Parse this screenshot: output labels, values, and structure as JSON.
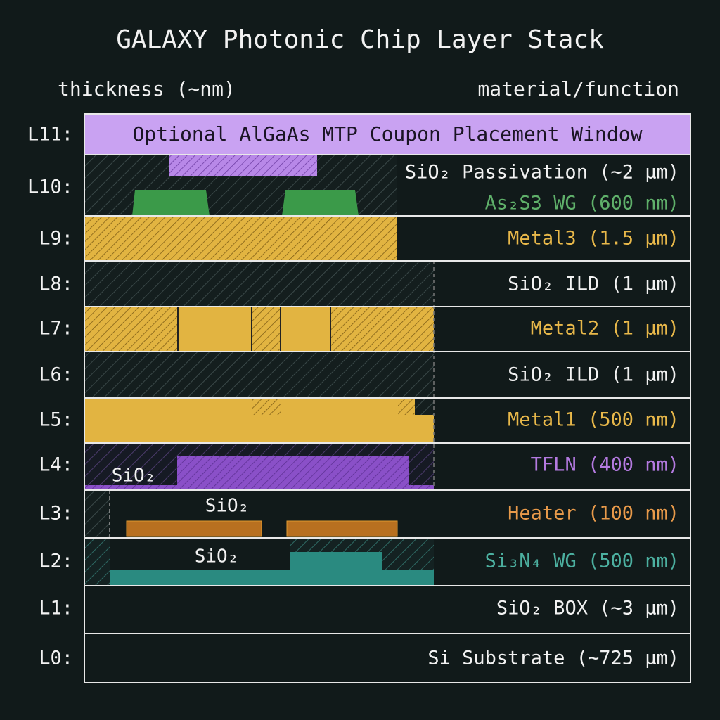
{
  "title": "GALAXY Photonic Chip Layer Stack",
  "headers": {
    "left": "thickness (~nm)",
    "right": "material/function"
  },
  "layers": [
    {
      "id": "L11:",
      "labels": [
        "Optional AlGaAs MTP Coupon Placement Window"
      ]
    },
    {
      "id": "L10:",
      "labels": [
        "SiO₂ Passivation (~2 µm)",
        "As₂S3 WG (600 nm)"
      ]
    },
    {
      "id": "L9:",
      "labels": [
        "Metal3 (1.5 µm)"
      ]
    },
    {
      "id": "L8:",
      "labels": [
        "SiO₂ ILD (1 µm)"
      ]
    },
    {
      "id": "L7:",
      "labels": [
        "Metal2 (1 µm)"
      ]
    },
    {
      "id": "L6:",
      "labels": [
        "SiO₂ ILD (1 µm)"
      ]
    },
    {
      "id": "L5:",
      "labels": [
        "Metal1 (500 nm)"
      ]
    },
    {
      "id": "L4:",
      "labels": [
        "TFLN (400 nm)"
      ]
    },
    {
      "id": "L3:",
      "labels": [
        "Heater (100 nm)"
      ]
    },
    {
      "id": "L2:",
      "labels": [
        "Si₃N₄ WG (500 nm)"
      ]
    },
    {
      "id": "L1:",
      "labels": [
        "SiO₂ BOX (~3 µm)"
      ]
    },
    {
      "id": "L0:",
      "labels": [
        "Si Substrate (~725 µm)"
      ]
    }
  ],
  "annotations": [
    "SiO₂",
    "SiO₂",
    "SiO₂"
  ]
}
